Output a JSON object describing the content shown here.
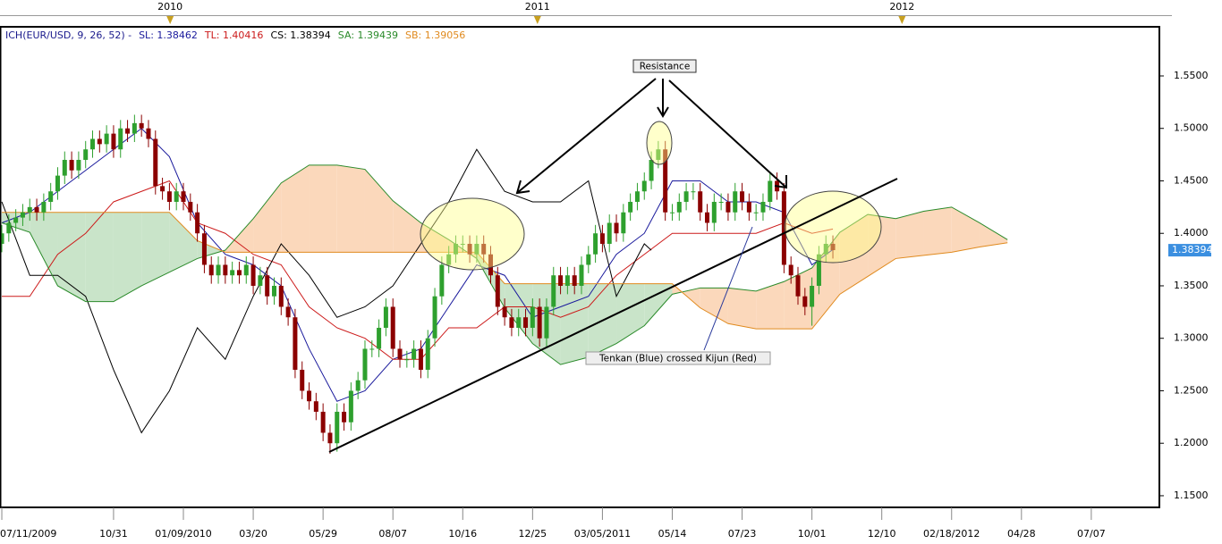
{
  "chart_data": {
    "type": "candlestick",
    "title": "ICH(EUR/USD, 9, 26, 52) -",
    "title_color": "#1a1a8c",
    "up_color": "#2ea02e",
    "down_color": "#8b0000",
    "cloud_colors": [
      "#c9e4c9",
      "#fbd8bb"
    ],
    "last_price": 1.38394,
    "last_price_color": "#3b8fe0",
    "ylim": [
      1.1389,
      1.5968
    ],
    "yticks": [
      {
        "value": 1.15,
        "label": "1.1500"
      },
      {
        "value": 1.2,
        "label": "1.2000"
      },
      {
        "value": 1.25,
        "label": "1.2500"
      },
      {
        "value": 1.3,
        "label": "1.3000"
      },
      {
        "value": 1.35,
        "label": "1.3500"
      },
      {
        "value": 1.4,
        "label": "1.4000"
      },
      {
        "value": 1.45,
        "label": "1.4500"
      },
      {
        "value": 1.5,
        "label": "1.5000"
      },
      {
        "value": 1.55,
        "label": "1.5500"
      }
    ],
    "xlim": [
      -0.26,
      165.75
    ],
    "xticks": [
      {
        "value": 0,
        "label": "07/11/2009"
      },
      {
        "value": 16,
        "label": "10/31"
      },
      {
        "value": 26,
        "label": "01/09/2010"
      },
      {
        "value": 36,
        "label": "03/20"
      },
      {
        "value": 46,
        "label": "05/29"
      },
      {
        "value": 56,
        "label": "08/07"
      },
      {
        "value": 66,
        "label": "10/16"
      },
      {
        "value": 76,
        "label": "12/25"
      },
      {
        "value": 86,
        "label": "03/05/2011"
      },
      {
        "value": 96,
        "label": "05/14"
      },
      {
        "value": 106,
        "label": "07/23"
      },
      {
        "value": 116,
        "label": "10/01"
      },
      {
        "value": 126,
        "label": "12/10"
      },
      {
        "value": 136,
        "label": "02/18/2012"
      },
      {
        "value": 146,
        "label": "04/28"
      },
      {
        "value": 156,
        "label": "07/07"
      }
    ],
    "xticks_top": [
      {
        "value": 24.1,
        "label": "2010"
      },
      {
        "value": 76.7,
        "label": "2011"
      },
      {
        "value": 128.9,
        "label": "2012"
      }
    ],
    "candles": [
      [
        1.39,
        1.408,
        1.382,
        1.4
      ],
      [
        1.4,
        1.418,
        1.392,
        1.41
      ],
      [
        1.41,
        1.423,
        1.402,
        1.415
      ],
      [
        1.415,
        1.428,
        1.407,
        1.42
      ],
      [
        1.42,
        1.433,
        1.412,
        1.425
      ],
      [
        1.425,
        1.433,
        1.412,
        1.42
      ],
      [
        1.42,
        1.438,
        1.412,
        1.43
      ],
      [
        1.43,
        1.448,
        1.422,
        1.44
      ],
      [
        1.44,
        1.463,
        1.432,
        1.455
      ],
      [
        1.455,
        1.478,
        1.447,
        1.47
      ],
      [
        1.47,
        1.478,
        1.452,
        1.46
      ],
      [
        1.46,
        1.478,
        1.452,
        1.47
      ],
      [
        1.47,
        1.488,
        1.462,
        1.48
      ],
      [
        1.48,
        1.498,
        1.472,
        1.49
      ],
      [
        1.49,
        1.498,
        1.477,
        1.485
      ],
      [
        1.485,
        1.503,
        1.477,
        1.495
      ],
      [
        1.495,
        1.503,
        1.472,
        1.48
      ],
      [
        1.48,
        1.508,
        1.472,
        1.5
      ],
      [
        1.5,
        1.508,
        1.487,
        1.495
      ],
      [
        1.495,
        1.513,
        1.487,
        1.505
      ],
      [
        1.505,
        1.513,
        1.492,
        1.5
      ],
      [
        1.5,
        1.508,
        1.482,
        1.49
      ],
      [
        1.49,
        1.498,
        1.437,
        1.445
      ],
      [
        1.445,
        1.453,
        1.432,
        1.44
      ],
      [
        1.44,
        1.448,
        1.422,
        1.43
      ],
      [
        1.43,
        1.448,
        1.422,
        1.44
      ],
      [
        1.44,
        1.448,
        1.422,
        1.43
      ],
      [
        1.43,
        1.438,
        1.412,
        1.42
      ],
      [
        1.42,
        1.428,
        1.392,
        1.4
      ],
      [
        1.4,
        1.408,
        1.362,
        1.37
      ],
      [
        1.37,
        1.378,
        1.352,
        1.36
      ],
      [
        1.36,
        1.378,
        1.352,
        1.37
      ],
      [
        1.37,
        1.378,
        1.352,
        1.36
      ],
      [
        1.36,
        1.373,
        1.352,
        1.365
      ],
      [
        1.365,
        1.373,
        1.352,
        1.36
      ],
      [
        1.36,
        1.378,
        1.352,
        1.37
      ],
      [
        1.37,
        1.378,
        1.342,
        1.35
      ],
      [
        1.35,
        1.368,
        1.342,
        1.36
      ],
      [
        1.36,
        1.368,
        1.332,
        1.34
      ],
      [
        1.34,
        1.358,
        1.332,
        1.35
      ],
      [
        1.35,
        1.358,
        1.322,
        1.33
      ],
      [
        1.33,
        1.338,
        1.312,
        1.32
      ],
      [
        1.32,
        1.328,
        1.262,
        1.27
      ],
      [
        1.27,
        1.278,
        1.242,
        1.25
      ],
      [
        1.25,
        1.258,
        1.232,
        1.24
      ],
      [
        1.24,
        1.248,
        1.222,
        1.23
      ],
      [
        1.23,
        1.238,
        1.202,
        1.21
      ],
      [
        1.21,
        1.218,
        1.19,
        1.2
      ],
      [
        1.2,
        1.238,
        1.192,
        1.23
      ],
      [
        1.23,
        1.238,
        1.212,
        1.22
      ],
      [
        1.22,
        1.258,
        1.212,
        1.25
      ],
      [
        1.25,
        1.268,
        1.242,
        1.26
      ],
      [
        1.26,
        1.298,
        1.252,
        1.29
      ],
      [
        1.29,
        1.298,
        1.282,
        1.29
      ],
      [
        1.29,
        1.318,
        1.282,
        1.31
      ],
      [
        1.31,
        1.338,
        1.302,
        1.33
      ],
      [
        1.33,
        1.338,
        1.282,
        1.29
      ],
      [
        1.29,
        1.298,
        1.272,
        1.28
      ],
      [
        1.28,
        1.288,
        1.272,
        1.28
      ],
      [
        1.28,
        1.298,
        1.272,
        1.29
      ],
      [
        1.29,
        1.298,
        1.262,
        1.27
      ],
      [
        1.27,
        1.308,
        1.262,
        1.3
      ],
      [
        1.3,
        1.348,
        1.292,
        1.34
      ],
      [
        1.34,
        1.378,
        1.332,
        1.37
      ],
      [
        1.37,
        1.388,
        1.362,
        1.38
      ],
      [
        1.38,
        1.398,
        1.372,
        1.39
      ],
      [
        1.39,
        1.398,
        1.382,
        1.39
      ],
      [
        1.39,
        1.398,
        1.372,
        1.38
      ],
      [
        1.38,
        1.398,
        1.372,
        1.39
      ],
      [
        1.39,
        1.398,
        1.372,
        1.38
      ],
      [
        1.38,
        1.388,
        1.352,
        1.36
      ],
      [
        1.36,
        1.368,
        1.322,
        1.33
      ],
      [
        1.33,
        1.338,
        1.312,
        1.32
      ],
      [
        1.32,
        1.328,
        1.302,
        1.31
      ],
      [
        1.31,
        1.328,
        1.302,
        1.32
      ],
      [
        1.32,
        1.328,
        1.302,
        1.31
      ],
      [
        1.31,
        1.338,
        1.302,
        1.33
      ],
      [
        1.33,
        1.338,
        1.292,
        1.3
      ],
      [
        1.3,
        1.338,
        1.292,
        1.33
      ],
      [
        1.33,
        1.368,
        1.322,
        1.36
      ],
      [
        1.36,
        1.368,
        1.342,
        1.35
      ],
      [
        1.35,
        1.368,
        1.342,
        1.36
      ],
      [
        1.36,
        1.368,
        1.342,
        1.35
      ],
      [
        1.35,
        1.378,
        1.342,
        1.37
      ],
      [
        1.37,
        1.388,
        1.362,
        1.38
      ],
      [
        1.38,
        1.408,
        1.372,
        1.4
      ],
      [
        1.4,
        1.408,
        1.382,
        1.39
      ],
      [
        1.39,
        1.418,
        1.382,
        1.41
      ],
      [
        1.41,
        1.418,
        1.392,
        1.4
      ],
      [
        1.4,
        1.428,
        1.392,
        1.42
      ],
      [
        1.42,
        1.438,
        1.412,
        1.43
      ],
      [
        1.43,
        1.448,
        1.422,
        1.44
      ],
      [
        1.44,
        1.458,
        1.432,
        1.45
      ],
      [
        1.45,
        1.478,
        1.442,
        1.47
      ],
      [
        1.47,
        1.488,
        1.462,
        1.48
      ],
      [
        1.48,
        1.488,
        1.412,
        1.42
      ],
      [
        1.42,
        1.428,
        1.412,
        1.42
      ],
      [
        1.42,
        1.438,
        1.412,
        1.43
      ],
      [
        1.43,
        1.448,
        1.422,
        1.44
      ],
      [
        1.44,
        1.448,
        1.432,
        1.44
      ],
      [
        1.44,
        1.448,
        1.412,
        1.42
      ],
      [
        1.42,
        1.428,
        1.402,
        1.41
      ],
      [
        1.41,
        1.438,
        1.402,
        1.43
      ],
      [
        1.43,
        1.438,
        1.422,
        1.43
      ],
      [
        1.43,
        1.438,
        1.412,
        1.42
      ],
      [
        1.42,
        1.448,
        1.412,
        1.44
      ],
      [
        1.44,
        1.448,
        1.422,
        1.43
      ],
      [
        1.43,
        1.438,
        1.412,
        1.42
      ],
      [
        1.42,
        1.428,
        1.412,
        1.42
      ],
      [
        1.42,
        1.438,
        1.412,
        1.43
      ],
      [
        1.43,
        1.458,
        1.422,
        1.45
      ],
      [
        1.45,
        1.458,
        1.432,
        1.44
      ],
      [
        1.44,
        1.448,
        1.362,
        1.37
      ],
      [
        1.37,
        1.378,
        1.352,
        1.36
      ],
      [
        1.36,
        1.368,
        1.332,
        1.34
      ],
      [
        1.34,
        1.348,
        1.322,
        1.33
      ],
      [
        1.33,
        1.358,
        1.312,
        1.35
      ],
      [
        1.35,
        1.388,
        1.342,
        1.38
      ],
      [
        1.38,
        1.398,
        1.372,
        1.39
      ],
      [
        1.39,
        1.398,
        1.376,
        1.384
      ]
    ],
    "series": [
      {
        "name": "SL: 1.38462",
        "color": "#1a1a9c",
        "x": [
          0,
          4,
          8,
          12,
          16,
          20,
          24,
          28,
          32,
          36,
          40,
          44,
          48,
          52,
          56,
          60,
          64,
          68,
          72,
          76,
          80,
          84,
          88,
          92,
          96,
          100,
          104,
          108,
          112,
          116,
          119
        ],
        "values": [
          1.41,
          1.42,
          1.44,
          1.46,
          1.48,
          1.5,
          1.473,
          1.41,
          1.38,
          1.37,
          1.35,
          1.29,
          1.24,
          1.25,
          1.28,
          1.29,
          1.33,
          1.37,
          1.36,
          1.32,
          1.33,
          1.34,
          1.38,
          1.4,
          1.45,
          1.45,
          1.43,
          1.43,
          1.42,
          1.37,
          1.38462
        ]
      },
      {
        "name": "TL: 1.40416",
        "color": "#cc1a1a",
        "x": [
          0,
          4,
          8,
          12,
          16,
          20,
          24,
          28,
          32,
          36,
          40,
          44,
          48,
          52,
          56,
          60,
          64,
          68,
          72,
          76,
          80,
          84,
          88,
          92,
          96,
          100,
          104,
          108,
          112,
          116,
          119
        ],
        "values": [
          1.34,
          1.34,
          1.38,
          1.4,
          1.43,
          1.44,
          1.45,
          1.41,
          1.4,
          1.38,
          1.37,
          1.33,
          1.31,
          1.3,
          1.28,
          1.28,
          1.31,
          1.31,
          1.33,
          1.33,
          1.32,
          1.33,
          1.36,
          1.38,
          1.4,
          1.4,
          1.4,
          1.4,
          1.41,
          1.4,
          1.40416
        ]
      },
      {
        "name": "CS: 1.38394",
        "color": "#000000",
        "x": [
          0,
          4,
          8,
          12,
          16,
          20,
          24,
          28,
          32,
          36,
          40,
          44,
          48,
          52,
          56,
          60,
          64,
          68,
          72,
          76,
          80,
          84,
          88,
          92,
          93
        ],
        "values": [
          1.43,
          1.36,
          1.36,
          1.34,
          1.27,
          1.21,
          1.25,
          1.31,
          1.28,
          1.34,
          1.39,
          1.36,
          1.32,
          1.33,
          1.35,
          1.39,
          1.43,
          1.48,
          1.44,
          1.43,
          1.43,
          1.45,
          1.34,
          1.39,
          1.38394
        ]
      },
      {
        "name": "SA: 1.39439",
        "color": "#2a8a2a",
        "x": [
          0,
          4,
          8,
          12,
          16,
          20,
          24,
          28,
          32,
          36,
          40,
          44,
          48,
          52,
          56,
          60,
          64,
          68,
          72,
          76,
          80,
          84,
          88,
          92,
          96,
          100,
          104,
          108,
          112,
          116,
          120,
          124,
          128,
          132,
          136,
          140,
          144
        ],
        "values": [
          1.41,
          1.401,
          1.35,
          1.335,
          1.335,
          1.35,
          1.363,
          1.376,
          1.384,
          1.414,
          1.448,
          1.465,
          1.465,
          1.461,
          1.431,
          1.41,
          1.394,
          1.376,
          1.329,
          1.295,
          1.275,
          1.282,
          1.295,
          1.312,
          1.342,
          1.348,
          1.348,
          1.345,
          1.354,
          1.367,
          1.401,
          1.418,
          1.414,
          1.421,
          1.425,
          1.41,
          1.394
        ]
      },
      {
        "name": "SB: 1.39056",
        "color": "#e08a1e",
        "x": [
          0,
          4,
          8,
          12,
          16,
          20,
          24,
          28,
          32,
          36,
          40,
          44,
          48,
          52,
          56,
          60,
          64,
          68,
          72,
          76,
          80,
          84,
          88,
          92,
          96,
          100,
          104,
          108,
          112,
          116,
          120,
          124,
          128,
          132,
          136,
          140,
          144
        ],
        "values": [
          1.42,
          1.42,
          1.42,
          1.42,
          1.42,
          1.42,
          1.42,
          1.393,
          1.382,
          1.382,
          1.382,
          1.382,
          1.382,
          1.382,
          1.382,
          1.382,
          1.382,
          1.382,
          1.352,
          1.352,
          1.352,
          1.352,
          1.352,
          1.352,
          1.352,
          1.329,
          1.314,
          1.309,
          1.309,
          1.309,
          1.342,
          1.359,
          1.376,
          1.379,
          1.382,
          1.387,
          1.391
        ]
      }
    ],
    "annotations": [
      "Resistance",
      "Tenkan (Blue) crossed Kijun (Red)"
    ]
  }
}
